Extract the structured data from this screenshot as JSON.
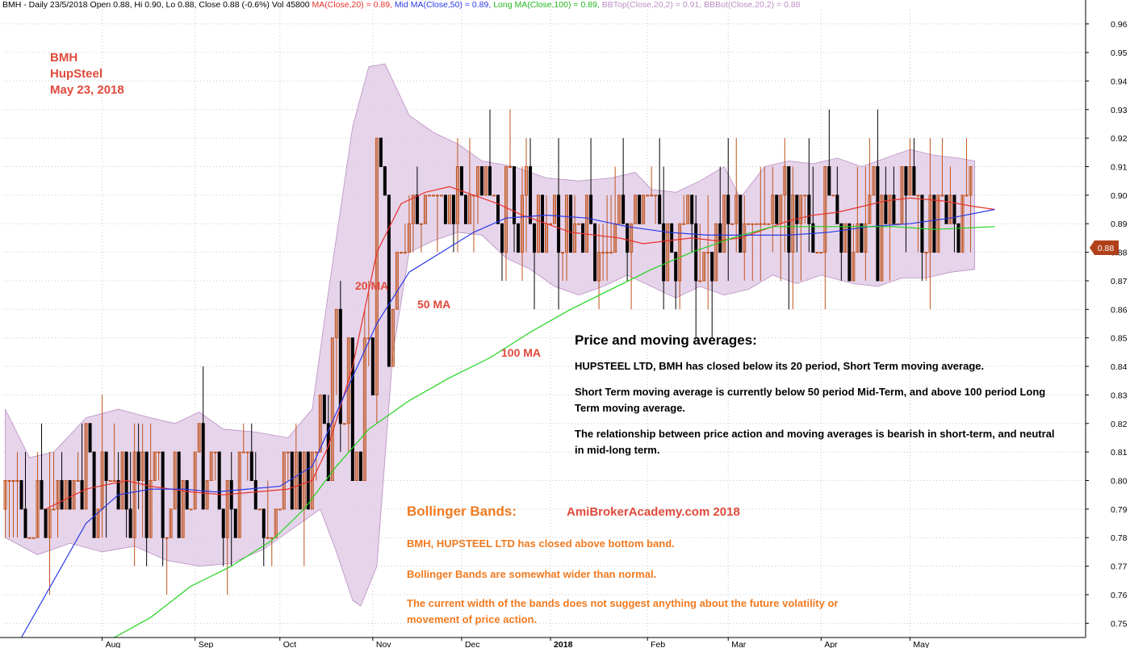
{
  "header": {
    "main": "BMH - Daily 23/5/2018 Open 0.88, Hi 0.90, Lo 0.88, Close 0.88 (-0.6%) Vol 45800",
    "ma20": "MA(Close,20) = 0.89,",
    "ma50": "Mid MA(Close,50) = 0.89,",
    "ma100": "Long MA(Close,100) = 0.89,",
    "bbtop": "BBTop(Close,20,2) = 0.91,",
    "bbbot": "BBBot(Close,20,2) = 0.88"
  },
  "annotation": {
    "ticker": "BMH",
    "name": "HupSteel",
    "date": "May 23, 2018",
    "ma20_label": "20 MA",
    "ma50_label": "50 MA",
    "ma100_label": "100 MA"
  },
  "price_ma": {
    "title": "Price and moving averages:",
    "p1": "HUPSTEEL LTD, BMH has closed below its 20 period, Short Term moving average.",
    "p2": "Short Term moving average is currently below 50 period Mid-Term, and above 100 period Long Term moving average.",
    "p3": "The relationship between price action and moving averages is bearish in short-term, and neutral in mid-long term."
  },
  "bollinger": {
    "title": "Bollinger Bands:",
    "site": "AmiBrokerAcademy.com   2018",
    "p1": "BMH, HUPSTEEL LTD  has closed above bottom band.",
    "p2": "Bollinger Bands are somewhat wider than normal.",
    "p3": "The current width of the bands does not suggest anything about the future volatility or movement of price action."
  },
  "price_badge": "0.88",
  "colors": {
    "ma20": "#e8322c",
    "ma50": "#2a3ae8",
    "ma100": "#22d41e",
    "band_fill": "#e2cde6",
    "band_line": "#b98fc2",
    "candle_up": "#c0541e",
    "candle_down": "#000000",
    "badge": "#b0401a"
  },
  "chart_data": {
    "type": "candlestick",
    "ylim": [
      0.745,
      0.965
    ],
    "y_ticks": [
      "0.75",
      "0.76",
      "0.77",
      "0.78",
      "0.79",
      "0.80",
      "0.81",
      "0.82",
      "0.83",
      "0.84",
      "0.85",
      "0.86",
      "0.87",
      "0.88",
      "0.89",
      "0.90",
      "0.91",
      "0.92",
      "0.93",
      "0.94",
      "0.95",
      "0.96"
    ],
    "x_ticks": [
      {
        "label": "Aug",
        "index": 24
      },
      {
        "label": "Sep",
        "index": 47
      },
      {
        "label": "Oct",
        "index": 68
      },
      {
        "label": "Nov",
        "index": 91
      },
      {
        "label": "Dec",
        "index": 113
      },
      {
        "label": "2018",
        "index": 135
      },
      {
        "label": "Feb",
        "index": 159
      },
      {
        "label": "Mar",
        "index": 179
      },
      {
        "label": "Apr",
        "index": 202
      },
      {
        "label": "May",
        "index": 224
      }
    ],
    "n_bars": 246,
    "series": [
      {
        "name": "MA(Close,20)",
        "points": [
          [
            10,
            0.79
          ],
          [
            20,
            0.797
          ],
          [
            30,
            0.8
          ],
          [
            36,
            0.798
          ],
          [
            46,
            0.796
          ],
          [
            54,
            0.795
          ],
          [
            62,
            0.796
          ],
          [
            70,
            0.797
          ],
          [
            76,
            0.8
          ],
          [
            80,
            0.812
          ],
          [
            86,
            0.84
          ],
          [
            92,
            0.88
          ],
          [
            98,
            0.897
          ],
          [
            104,
            0.901
          ],
          [
            110,
            0.903
          ],
          [
            116,
            0.9
          ],
          [
            122,
            0.897
          ],
          [
            128,
            0.893
          ],
          [
            134,
            0.89
          ],
          [
            140,
            0.887
          ],
          [
            146,
            0.886
          ],
          [
            152,
            0.885
          ],
          [
            158,
            0.883
          ],
          [
            164,
            0.884
          ],
          [
            170,
            0.885
          ],
          [
            176,
            0.884
          ],
          [
            182,
            0.885
          ],
          [
            188,
            0.888
          ],
          [
            194,
            0.891
          ],
          [
            200,
            0.893
          ],
          [
            206,
            0.894
          ],
          [
            212,
            0.896
          ],
          [
            218,
            0.898
          ],
          [
            224,
            0.899
          ],
          [
            232,
            0.898
          ],
          [
            240,
            0.896
          ],
          [
            245,
            0.895
          ]
        ]
      },
      {
        "name": "Mid MA(Close,50)",
        "points": [
          [
            4,
            0.745
          ],
          [
            12,
            0.765
          ],
          [
            20,
            0.785
          ],
          [
            28,
            0.795
          ],
          [
            36,
            0.797
          ],
          [
            44,
            0.797
          ],
          [
            52,
            0.796
          ],
          [
            60,
            0.797
          ],
          [
            68,
            0.798
          ],
          [
            76,
            0.805
          ],
          [
            84,
            0.83
          ],
          [
            92,
            0.855
          ],
          [
            100,
            0.873
          ],
          [
            108,
            0.88
          ],
          [
            116,
            0.887
          ],
          [
            124,
            0.892
          ],
          [
            134,
            0.893
          ],
          [
            144,
            0.892
          ],
          [
            154,
            0.889
          ],
          [
            164,
            0.887
          ],
          [
            174,
            0.886
          ],
          [
            184,
            0.886
          ],
          [
            194,
            0.886
          ],
          [
            204,
            0.887
          ],
          [
            214,
            0.889
          ],
          [
            224,
            0.89
          ],
          [
            234,
            0.892
          ],
          [
            245,
            0.895
          ]
        ]
      },
      {
        "name": "Long MA(Close,100)",
        "points": [
          [
            27,
            0.745
          ],
          [
            36,
            0.752
          ],
          [
            46,
            0.763
          ],
          [
            56,
            0.77
          ],
          [
            66,
            0.779
          ],
          [
            74,
            0.79
          ],
          [
            82,
            0.805
          ],
          [
            90,
            0.818
          ],
          [
            100,
            0.828
          ],
          [
            110,
            0.836
          ],
          [
            120,
            0.843
          ],
          [
            130,
            0.852
          ],
          [
            140,
            0.86
          ],
          [
            150,
            0.867
          ],
          [
            160,
            0.874
          ],
          [
            170,
            0.88
          ],
          [
            180,
            0.885
          ],
          [
            190,
            0.889
          ],
          [
            200,
            0.889
          ],
          [
            210,
            0.889
          ],
          [
            220,
            0.889
          ],
          [
            230,
            0.888
          ],
          [
            245,
            0.889
          ]
        ]
      },
      {
        "name": "BBTop(Close,20,2)",
        "points": [
          [
            0,
            0.825
          ],
          [
            6,
            0.808
          ],
          [
            12,
            0.81
          ],
          [
            20,
            0.822
          ],
          [
            28,
            0.825
          ],
          [
            36,
            0.822
          ],
          [
            42,
            0.82
          ],
          [
            48,
            0.824
          ],
          [
            54,
            0.818
          ],
          [
            62,
            0.817
          ],
          [
            70,
            0.815
          ],
          [
            76,
            0.825
          ],
          [
            80,
            0.866
          ],
          [
            86,
            0.924
          ],
          [
            90,
            0.945
          ],
          [
            94,
            0.946
          ],
          [
            100,
            0.928
          ],
          [
            106,
            0.922
          ],
          [
            112,
            0.918
          ],
          [
            118,
            0.912
          ],
          [
            126,
            0.91
          ],
          [
            134,
            0.906
          ],
          [
            142,
            0.905
          ],
          [
            150,
            0.906
          ],
          [
            156,
            0.908
          ],
          [
            160,
            0.902
          ],
          [
            166,
            0.901
          ],
          [
            172,
            0.905
          ],
          [
            178,
            0.91
          ],
          [
            182,
            0.899
          ],
          [
            188,
            0.91
          ],
          [
            194,
            0.912
          ],
          [
            200,
            0.911
          ],
          [
            206,
            0.913
          ],
          [
            212,
            0.91
          ],
          [
            218,
            0.913
          ],
          [
            224,
            0.916
          ],
          [
            230,
            0.914
          ],
          [
            236,
            0.913
          ],
          [
            240,
            0.912
          ]
        ]
      },
      {
        "name": "BBBot(Close,20,2)",
        "points": [
          [
            0,
            0.78
          ],
          [
            8,
            0.774
          ],
          [
            16,
            0.778
          ],
          [
            24,
            0.775
          ],
          [
            32,
            0.777
          ],
          [
            40,
            0.772
          ],
          [
            48,
            0.77
          ],
          [
            56,
            0.771
          ],
          [
            64,
            0.776
          ],
          [
            70,
            0.782
          ],
          [
            74,
            0.786
          ],
          [
            78,
            0.79
          ],
          [
            82,
            0.775
          ],
          [
            86,
            0.758
          ],
          [
            88,
            0.756
          ],
          [
            92,
            0.77
          ],
          [
            96,
            0.845
          ],
          [
            100,
            0.88
          ],
          [
            106,
            0.884
          ],
          [
            112,
            0.887
          ],
          [
            118,
            0.886
          ],
          [
            124,
            0.878
          ],
          [
            130,
            0.874
          ],
          [
            136,
            0.868
          ],
          [
            142,
            0.865
          ],
          [
            148,
            0.868
          ],
          [
            154,
            0.872
          ],
          [
            160,
            0.868
          ],
          [
            166,
            0.864
          ],
          [
            172,
            0.868
          ],
          [
            178,
            0.865
          ],
          [
            184,
            0.867
          ],
          [
            190,
            0.872
          ],
          [
            196,
            0.869
          ],
          [
            202,
            0.872
          ],
          [
            210,
            0.869
          ],
          [
            216,
            0.868
          ],
          [
            222,
            0.871
          ],
          [
            228,
            0.871
          ],
          [
            234,
            0.873
          ],
          [
            240,
            0.874
          ]
        ]
      }
    ],
    "last_close": 0.88
  }
}
